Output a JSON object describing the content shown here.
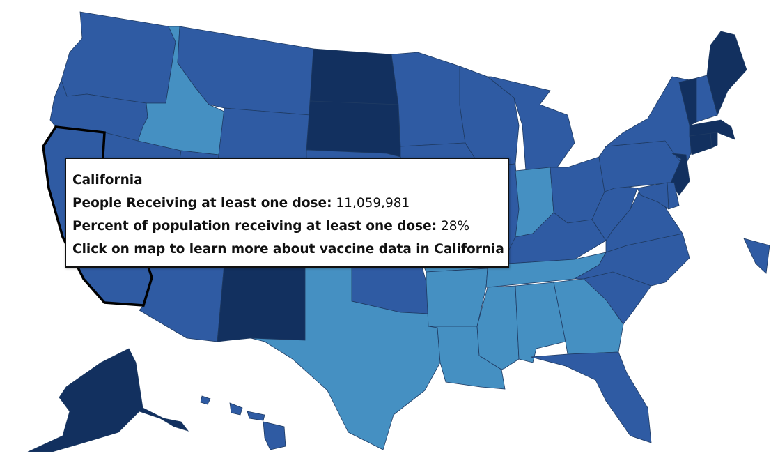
{
  "colors": {
    "dark": "#12305f",
    "medium": "#2f5ba3",
    "light": "#4590c2",
    "outline": "#1f3b63",
    "selected_outline": "#000000"
  },
  "selected_state": "California",
  "tooltip": {
    "state_name": "California",
    "dose_label": "People Receiving at least one dose:",
    "dose_value": "11,059,981",
    "percent_label": "Percent of population receiving at least one dose:",
    "percent_value": "28%",
    "cta": "Click on map to learn more about vaccine data in California"
  },
  "states": [
    {
      "id": "WA",
      "fill": "medium"
    },
    {
      "id": "OR",
      "fill": "medium"
    },
    {
      "id": "CA",
      "fill": "medium"
    },
    {
      "id": "NV",
      "fill": "medium"
    },
    {
      "id": "ID",
      "fill": "light"
    },
    {
      "id": "MT",
      "fill": "medium"
    },
    {
      "id": "WY",
      "fill": "medium"
    },
    {
      "id": "UT",
      "fill": "medium"
    },
    {
      "id": "CO",
      "fill": "medium"
    },
    {
      "id": "AZ",
      "fill": "medium"
    },
    {
      "id": "NM",
      "fill": "dark"
    },
    {
      "id": "ND",
      "fill": "dark"
    },
    {
      "id": "SD",
      "fill": "dark"
    },
    {
      "id": "NE",
      "fill": "medium"
    },
    {
      "id": "KS",
      "fill": "medium"
    },
    {
      "id": "OK",
      "fill": "medium"
    },
    {
      "id": "TX",
      "fill": "light"
    },
    {
      "id": "MN",
      "fill": "medium"
    },
    {
      "id": "IA",
      "fill": "medium"
    },
    {
      "id": "MO",
      "fill": "light"
    },
    {
      "id": "AR",
      "fill": "light"
    },
    {
      "id": "LA",
      "fill": "light"
    },
    {
      "id": "WI",
      "fill": "medium"
    },
    {
      "id": "IL",
      "fill": "medium"
    },
    {
      "id": "MI",
      "fill": "medium"
    },
    {
      "id": "IN",
      "fill": "light"
    },
    {
      "id": "OH",
      "fill": "medium"
    },
    {
      "id": "KY",
      "fill": "medium"
    },
    {
      "id": "TN",
      "fill": "light"
    },
    {
      "id": "MS",
      "fill": "light"
    },
    {
      "id": "AL",
      "fill": "light"
    },
    {
      "id": "GA",
      "fill": "light"
    },
    {
      "id": "FL",
      "fill": "medium"
    },
    {
      "id": "SC",
      "fill": "medium"
    },
    {
      "id": "NC",
      "fill": "medium"
    },
    {
      "id": "VA",
      "fill": "medium"
    },
    {
      "id": "WV",
      "fill": "medium"
    },
    {
      "id": "PA",
      "fill": "medium"
    },
    {
      "id": "NY",
      "fill": "medium"
    },
    {
      "id": "NJ",
      "fill": "dark"
    },
    {
      "id": "DE",
      "fill": "medium"
    },
    {
      "id": "MD",
      "fill": "medium"
    },
    {
      "id": "CT",
      "fill": "dark"
    },
    {
      "id": "RI",
      "fill": "dark"
    },
    {
      "id": "MA",
      "fill": "dark"
    },
    {
      "id": "VT",
      "fill": "dark"
    },
    {
      "id": "NH",
      "fill": "medium"
    },
    {
      "id": "ME",
      "fill": "dark"
    },
    {
      "id": "AK",
      "fill": "dark"
    },
    {
      "id": "HI",
      "fill": "medium"
    },
    {
      "id": "PR",
      "fill": "medium"
    }
  ]
}
